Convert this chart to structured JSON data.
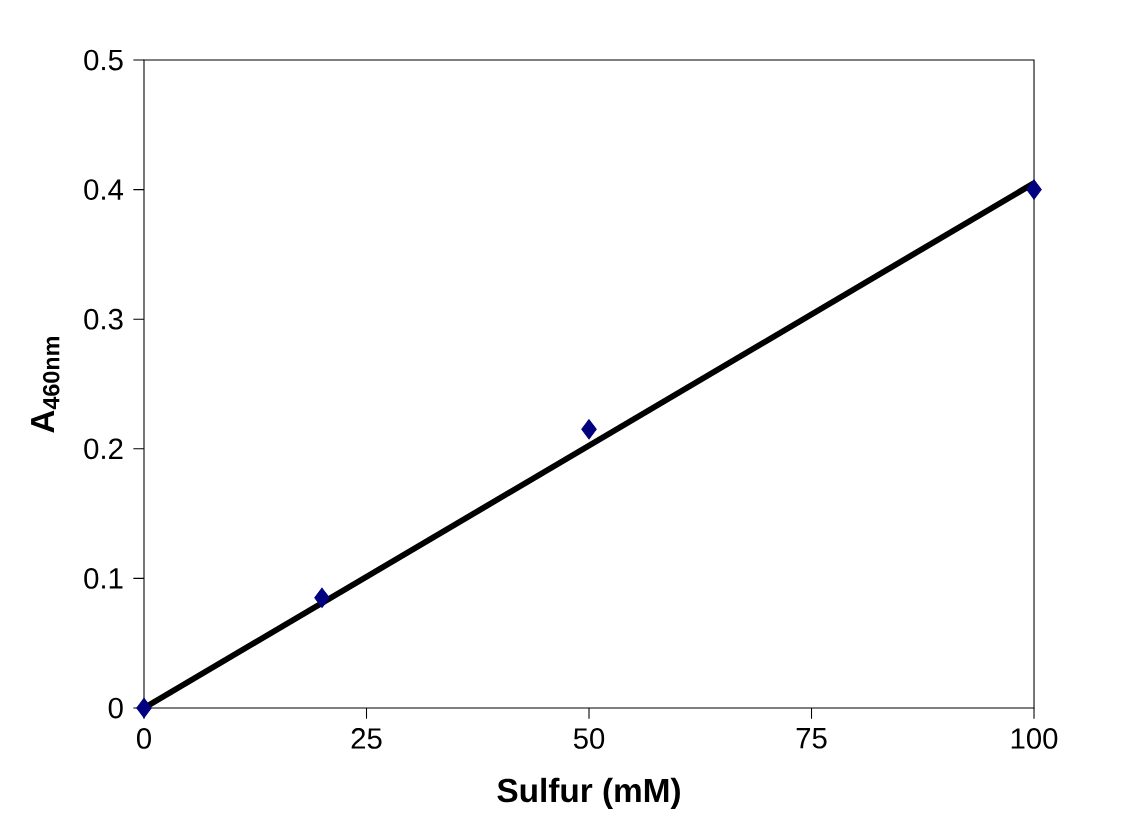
{
  "chart_data": {
    "type": "scatter",
    "xlabel": "Sulfur (mM)",
    "ylabel": "A$_{460nm}$",
    "xlim": [
      0,
      100
    ],
    "ylim": [
      0,
      0.5
    ],
    "xticks": [
      0,
      25,
      50,
      75,
      100
    ],
    "yticks": [
      0,
      0.1,
      0.2,
      0.3,
      0.4,
      0.5
    ],
    "grid": false,
    "marker": "diamond",
    "series": [
      {
        "type": "line",
        "marker": "none",
        "line_style": "solid",
        "color": "#000000",
        "x": [
          0,
          100
        ],
        "values": [
          0,
          0.405
        ]
      },
      {
        "color": "#000080",
        "x": [
          0,
          20,
          50,
          100
        ],
        "values": [
          0,
          0.085,
          0.215,
          0.4
        ]
      }
    ]
  }
}
